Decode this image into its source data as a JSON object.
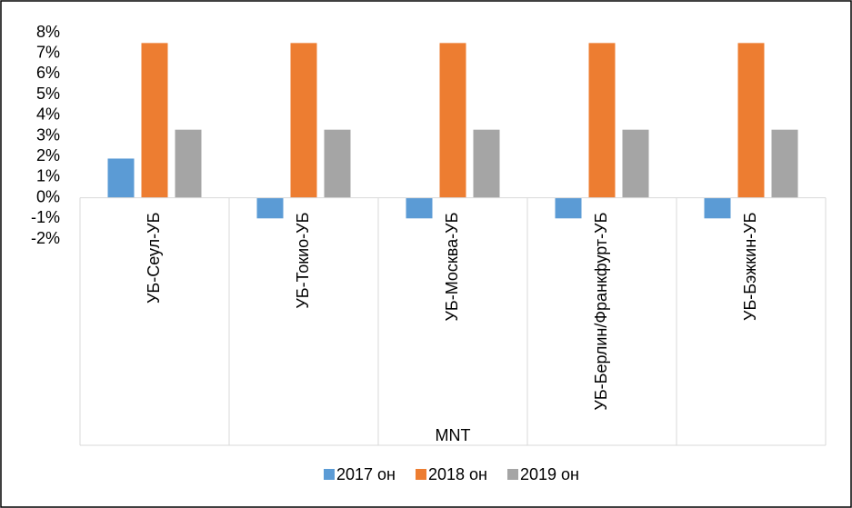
{
  "chart_data": {
    "type": "bar",
    "categories": [
      "УБ-Сеул-УБ",
      "УБ-Токио-УБ",
      "УБ-Москва-УБ",
      "УБ-Берлин/Франкфурт-УБ",
      "УБ-Бэжкин-УБ"
    ],
    "series": [
      {
        "name": "2017 он",
        "color": "#5b9bd5",
        "values": [
          1.9,
          -1,
          -1,
          -1,
          -1
        ]
      },
      {
        "name": "2018 он",
        "color": "#ed7d31",
        "values": [
          7.5,
          7.5,
          7.5,
          7.5,
          7.5
        ]
      },
      {
        "name": "2019 он",
        "color": "#a5a5a5",
        "values": [
          3.3,
          3.3,
          3.3,
          3.3,
          3.3
        ]
      }
    ],
    "x_label": "MNT",
    "ylim": [
      -2,
      8
    ],
    "yticks": [
      {
        "value": 8,
        "label": "8%"
      },
      {
        "value": 7,
        "label": "7%"
      },
      {
        "value": 6,
        "label": "6%"
      },
      {
        "value": 5,
        "label": "5%"
      },
      {
        "value": 4,
        "label": "4%"
      },
      {
        "value": 3,
        "label": "3%"
      },
      {
        "value": 2,
        "label": "2%"
      },
      {
        "value": 1,
        "label": "1%"
      },
      {
        "value": 0,
        "label": "0%"
      },
      {
        "value": -1,
        "label": "-1%"
      },
      {
        "value": -2,
        "label": "-2%"
      }
    ],
    "legend": "bottom"
  }
}
